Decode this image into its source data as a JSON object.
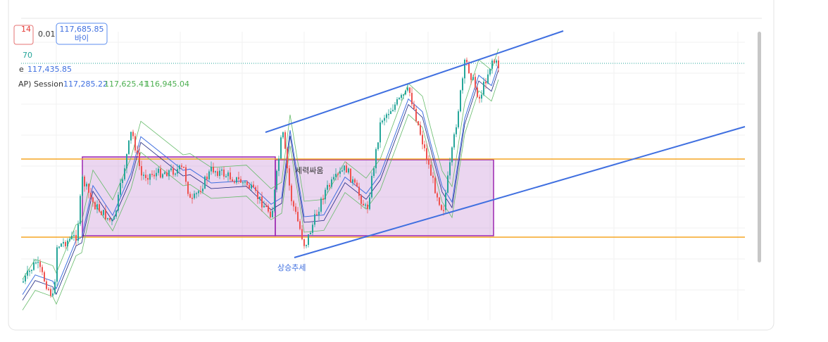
{
  "header": {
    "order_badge": "14",
    "qty": "0.01",
    "buy_price": "117,685.85",
    "buy_label": "바이",
    "indicator_value": "70",
    "price_prefix": "e",
    "price_label": "117,435.85",
    "session_label": "AP) Session",
    "session_values": [
      "117,285.22",
      "117,625.41",
      "116,945.04"
    ]
  },
  "annotations": {
    "range": "세력싸움",
    "trend": "상승추세"
  }
}
